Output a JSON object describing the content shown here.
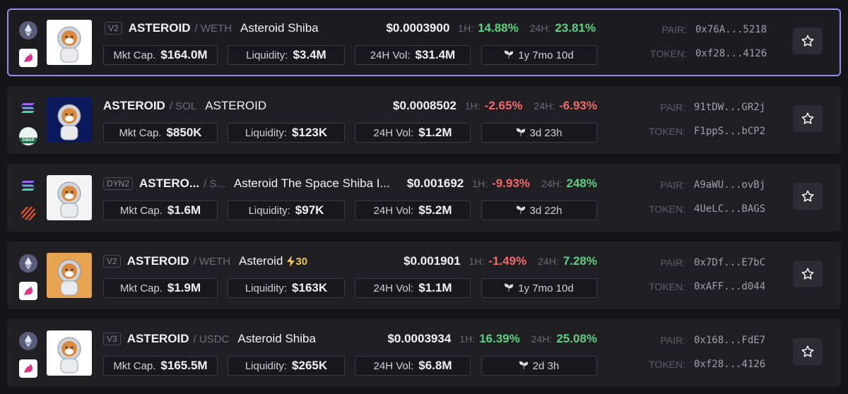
{
  "labels": {
    "h1": "1H:",
    "h24": "24H:",
    "mcap": "Mkt Cap.",
    "liquidity": "Liquidity:",
    "volume": "24H Vol:",
    "pair": "PAIR:",
    "token": "TOKEN:"
  },
  "rows": [
    {
      "version": "V2",
      "symbol": "ASTEROID",
      "quote": "/ WETH",
      "name": "Asteroid Shiba",
      "price": "$0.0003900",
      "change_1h": "14.88%",
      "change_24h": "23.81%",
      "market_cap": "$164.0M",
      "liquidity": "$3.4M",
      "volume_24h": "$31.4M",
      "age": "1y 7mo 10d",
      "pair": "0x76A...5218",
      "token": "0xf28...4126"
    },
    {
      "dex_label": "SWAP",
      "symbol": "ASTEROID",
      "quote": "/ SOL",
      "name": "ASTEROID",
      "price": "$0.0008502",
      "change_1h": "-2.65%",
      "change_24h": "-6.93%",
      "market_cap": "$850K",
      "liquidity": "$123K",
      "volume_24h": "$1.2M",
      "age": "3d 23h",
      "pair": "91tDW...GR2j",
      "token": "F1ppS...bCP2"
    },
    {
      "version": "DYN2",
      "symbol": "ASTERO...",
      "quote": "/ S...",
      "name": "Asteroid The Space Shiba I...",
      "price": "$0.001692",
      "change_1h": "-9.93%",
      "change_24h": "248%",
      "market_cap": "$1.6M",
      "liquidity": "$97K",
      "volume_24h": "$5.2M",
      "age": "3d 22h",
      "pair": "A9aWU...ovBj",
      "token": "4UeLC...BAGS"
    },
    {
      "version": "V2",
      "symbol": "ASTEROID",
      "quote": "/ WETH",
      "name": "Asteroid",
      "boost": "30",
      "price": "$0.001901",
      "change_1h": "-1.49%",
      "change_24h": "7.28%",
      "market_cap": "$1.9M",
      "liquidity": "$163K",
      "volume_24h": "$1.1M",
      "age": "1y 7mo 10d",
      "pair": "0x7Df...E7bC",
      "token": "0xAFF...d044"
    },
    {
      "version": "V3",
      "symbol": "ASTEROID",
      "quote": "/ USDC",
      "name": "Asteroid Shiba",
      "price": "$0.0003934",
      "change_1h": "16.39%",
      "change_24h": "25.08%",
      "market_cap": "$165.5M",
      "liquidity": "$265K",
      "volume_24h": "$6.8M",
      "age": "2d 3h",
      "pair": "0x168...FdE7",
      "token": "0xf28...4126"
    }
  ]
}
